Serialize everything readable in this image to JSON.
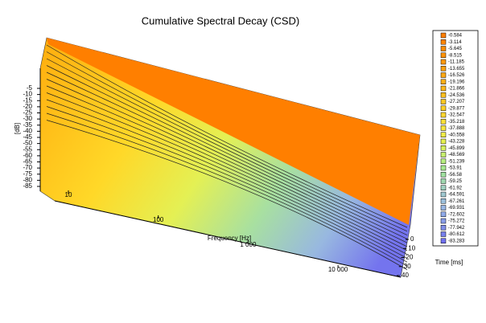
{
  "chart_data": {
    "type": "surface",
    "title": "Cumulative Spectral Decay (CSD)",
    "xlabel": "Frequency [Hz]",
    "ylabel": "Time [ms]",
    "zlabel": "[dB]",
    "xscale": "log",
    "xlim": [
      5,
      20000
    ],
    "xticks": [
      10,
      100,
      {
        "value": 1000,
        "label": "1 000"
      },
      {
        "value": 10000,
        "label": "10 000"
      }
    ],
    "ylim": [
      0,
      40
    ],
    "yticks": [
      0,
      10,
      20,
      30,
      40
    ],
    "zlim": [
      -85,
      -5
    ],
    "zticks": [
      -5,
      -10,
      -15,
      -20,
      -25,
      -30,
      -35,
      -40,
      -45,
      -50,
      -55,
      -60,
      -65,
      -70,
      -75,
      -80,
      -85
    ],
    "legend": {
      "levels": [
        -0.584,
        -3.114,
        -5.645,
        -8.515,
        -11.185,
        -13.655,
        -16.526,
        -19.196,
        -21.866,
        -24.536,
        -27.207,
        -29.877,
        -32.547,
        -35.218,
        -37.888,
        -40.558,
        -43.228,
        -45.899,
        -48.569,
        -51.239,
        -53.91,
        -56.58,
        -59.25,
        -61.92,
        -64.591,
        -67.261,
        -69.931,
        -72.602,
        -75.272,
        -77.942,
        -80.612,
        -83.283
      ],
      "colors": [
        "#ff7f00",
        "#ff8500",
        "#ff8c04",
        "#ff9308",
        "#ff9a0c",
        "#ffa110",
        "#ffa814",
        "#ffb018",
        "#ffb81c",
        "#ffc020",
        "#ffc824",
        "#ffd028",
        "#ffd830",
        "#fde038",
        "#f8e640",
        "#f0ec48",
        "#e6f050",
        "#d8f060",
        "#c8f070",
        "#b8ee80",
        "#a8e890",
        "#a0e0a0",
        "#a0d8b0",
        "#a0d0c0",
        "#a0c8d0",
        "#9cc0dc",
        "#98b6e4",
        "#90aae8",
        "#889ce8",
        "#808ee8",
        "#7880ec",
        "#7070f0"
      ]
    }
  }
}
